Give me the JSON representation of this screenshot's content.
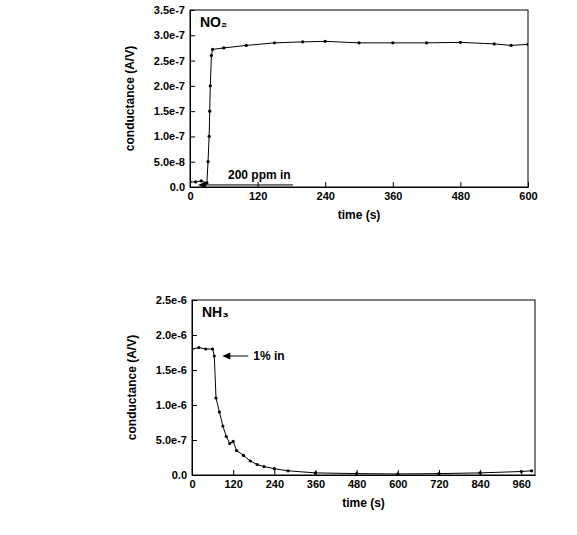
{
  "chart_data": [
    {
      "type": "line",
      "title": "NO₂",
      "x_label": "time (s)",
      "y_label": "conductance (A/V)",
      "annotation": "200 ppm in",
      "x": [
        0,
        10,
        20,
        30,
        32,
        34,
        35,
        36,
        38,
        40,
        60,
        100,
        150,
        200,
        240,
        300,
        360,
        420,
        480,
        540,
        570,
        600
      ],
      "series": [
        {
          "color": "#000000",
          "marker": "circle",
          "values": [
            1e-08,
            1e-08,
            1.2e-08,
            8e-09,
            5e-08,
            1e-07,
            1.5e-07,
            2e-07,
            2.6e-07,
            2.72e-07,
            2.75e-07,
            2.8e-07,
            2.85e-07,
            2.87e-07,
            2.88e-07,
            2.85e-07,
            2.85e-07,
            2.85e-07,
            2.86e-07,
            2.83e-07,
            2.8e-07,
            2.82e-07
          ]
        }
      ],
      "xlim": [
        0,
        600
      ],
      "xticks": [
        0,
        120,
        240,
        360,
        480,
        600
      ],
      "ylim": [
        0,
        3.5e-07
      ],
      "yticks": [
        {
          "value": 0,
          "label": "0.0"
        },
        {
          "value": 5e-08,
          "label": "5.0e-8"
        },
        {
          "value": 1e-07,
          "label": "1.0e-7"
        },
        {
          "value": 1.5e-07,
          "label": "1.5e-7"
        },
        {
          "value": 2e-07,
          "label": "2.0e-7"
        },
        {
          "value": 2.5e-07,
          "label": "2.5e-7"
        },
        {
          "value": 3e-07,
          "label": "3.0e-7"
        },
        {
          "value": 3.5e-07,
          "label": "3.5e-7"
        }
      ],
      "grid": false
    },
    {
      "type": "line",
      "title": "NH₃",
      "x_label": "time (s)",
      "y_label": "conductance (A/V)",
      "annotation": "1% in",
      "x": [
        0,
        20,
        40,
        60,
        65,
        70,
        80,
        90,
        100,
        110,
        120,
        130,
        150,
        170,
        190,
        210,
        240,
        280,
        360,
        480,
        600,
        720,
        840,
        960,
        990
      ],
      "series": [
        {
          "color": "#000000",
          "marker": "circle",
          "values": [
            1.8e-06,
            1.82e-06,
            1.8e-06,
            1.8e-06,
            1.7e-06,
            1.1e-06,
            9e-07,
            7e-07,
            5.5e-07,
            4.5e-07,
            4.8e-07,
            3.5e-07,
            2.8e-07,
            2e-07,
            1.5e-07,
            1.2e-07,
            9e-08,
            6e-08,
            3e-08,
            2e-08,
            1.5e-08,
            2e-08,
            3e-08,
            5e-08,
            6e-08
          ]
        }
      ],
      "xlim": [
        0,
        1000
      ],
      "xticks": [
        0,
        120,
        240,
        360,
        480,
        600,
        720,
        840,
        960
      ],
      "ylim": [
        0,
        2.5e-06
      ],
      "yticks": [
        {
          "value": 0,
          "label": "0.0"
        },
        {
          "value": 5e-07,
          "label": "5.0e-7"
        },
        {
          "value": 1e-06,
          "label": "1.0e-6"
        },
        {
          "value": 1.5e-06,
          "label": "1.5e-6"
        },
        {
          "value": 2e-06,
          "label": "2.0e-6"
        },
        {
          "value": 2.5e-06,
          "label": "2.5e-6"
        }
      ],
      "grid": false
    }
  ]
}
